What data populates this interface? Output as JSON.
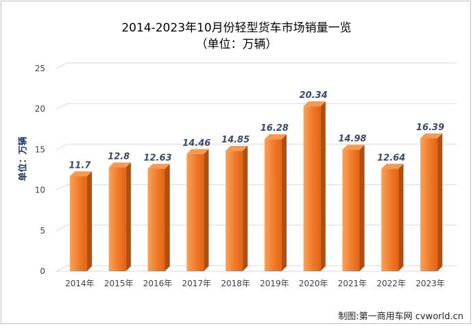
{
  "chart_data": {
    "type": "bar",
    "title": "2014-2023年10月份轻型货车市场销量一览",
    "subtitle": "（单位：万辆）",
    "ylabel": "单位：万辆",
    "xlabel": "",
    "categories": [
      "2014年",
      "2015年",
      "2016年",
      "2017年",
      "2018年",
      "2019年",
      "2020年",
      "2021年",
      "2022年",
      "2023年"
    ],
    "values": [
      11.7,
      12.8,
      12.63,
      14.46,
      14.85,
      16.28,
      20.34,
      14.98,
      12.64,
      16.39
    ],
    "data_labels": [
      "11.7",
      "12.8",
      "12.63",
      "14.46",
      "14.85",
      "16.28",
      "20.34",
      "14.98",
      "12.64",
      "16.39"
    ],
    "yticks": [
      0,
      5,
      10,
      15,
      20,
      25
    ],
    "ylim": [
      0,
      25
    ],
    "grid": true,
    "legend": "none"
  },
  "colors": {
    "bar_front": "#f07a2a",
    "bar_front_light": "#f7a35a",
    "bar_side": "#b24f10",
    "bar_top": "#f39a55",
    "grid": "#d9d9d9",
    "data_label": "#3b4a6b",
    "axis_text": "#404040",
    "ylabel": "#1f3864"
  },
  "credit": "制图:第一商用车网 cvworld.cn"
}
